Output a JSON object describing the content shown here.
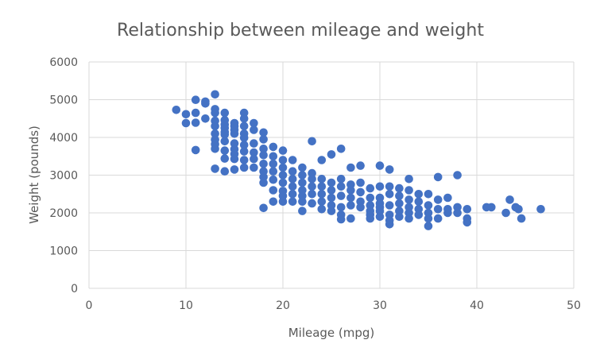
{
  "chart_data": {
    "type": "scatter",
    "title": "Relationship between mileage and weight",
    "xlabel": "Mileage (mpg)",
    "ylabel": "Weight (pounds)",
    "xlim": [
      0,
      50
    ],
    "ylim": [
      0,
      6000
    ],
    "x_ticks": [
      "0",
      "10",
      "20",
      "30",
      "40",
      "50"
    ],
    "y_ticks": [
      "0",
      "1000",
      "2000",
      "3000",
      "4000",
      "5000",
      "6000"
    ],
    "grid": true,
    "marker_color": "#4472c4",
    "legend": "none",
    "series": [
      {
        "points": [
          [
            9,
            4730
          ],
          [
            10,
            4615
          ],
          [
            10,
            4380
          ],
          [
            11,
            4995
          ],
          [
            11,
            4650
          ],
          [
            11,
            4390
          ],
          [
            11,
            3665
          ],
          [
            12,
            4950
          ],
          [
            12,
            4900
          ],
          [
            12,
            4500
          ],
          [
            13,
            5140
          ],
          [
            13,
            4750
          ],
          [
            13,
            4650
          ],
          [
            13,
            4440
          ],
          [
            13,
            4300
          ],
          [
            13,
            4100
          ],
          [
            13,
            3940
          ],
          [
            13,
            3820
          ],
          [
            13,
            3700
          ],
          [
            13,
            3170
          ],
          [
            14,
            4650
          ],
          [
            14,
            4460
          ],
          [
            14,
            4340
          ],
          [
            14,
            4250
          ],
          [
            14,
            4140
          ],
          [
            14,
            4080
          ],
          [
            14,
            3900
          ],
          [
            14,
            3650
          ],
          [
            14,
            3440
          ],
          [
            14,
            3100
          ],
          [
            15,
            4380
          ],
          [
            15,
            4300
          ],
          [
            15,
            4200
          ],
          [
            15,
            4100
          ],
          [
            15,
            3840
          ],
          [
            15,
            3690
          ],
          [
            15,
            3560
          ],
          [
            15,
            3430
          ],
          [
            15,
            3150
          ],
          [
            16,
            4650
          ],
          [
            16,
            4500
          ],
          [
            16,
            4300
          ],
          [
            16,
            4100
          ],
          [
            16,
            3990
          ],
          [
            16,
            3800
          ],
          [
            16,
            3630
          ],
          [
            16,
            3400
          ],
          [
            16,
            3200
          ],
          [
            17,
            4380
          ],
          [
            17,
            4200
          ],
          [
            17,
            3840
          ],
          [
            17,
            3600
          ],
          [
            17,
            3430
          ],
          [
            17,
            3200
          ],
          [
            18,
            4130
          ],
          [
            18,
            3950
          ],
          [
            18,
            3700
          ],
          [
            18,
            3530
          ],
          [
            18,
            3300
          ],
          [
            18,
            3100
          ],
          [
            18,
            2950
          ],
          [
            18,
            2800
          ],
          [
            18,
            2130
          ],
          [
            19,
            3750
          ],
          [
            19,
            3500
          ],
          [
            19,
            3300
          ],
          [
            19,
            3100
          ],
          [
            19,
            2880
          ],
          [
            19,
            2600
          ],
          [
            19,
            2300
          ],
          [
            20,
            3650
          ],
          [
            20,
            3400
          ],
          [
            20,
            3200
          ],
          [
            20,
            3000
          ],
          [
            20,
            2800
          ],
          [
            20,
            2580
          ],
          [
            20,
            2450
          ],
          [
            20,
            2300
          ],
          [
            21,
            3400
          ],
          [
            21,
            3100
          ],
          [
            21,
            2900
          ],
          [
            21,
            2700
          ],
          [
            21,
            2500
          ],
          [
            21,
            2300
          ],
          [
            22,
            3200
          ],
          [
            22,
            3000
          ],
          [
            22,
            2800
          ],
          [
            22,
            2600
          ],
          [
            22,
            2450
          ],
          [
            22,
            2300
          ],
          [
            22,
            2050
          ],
          [
            23,
            3900
          ],
          [
            23,
            3050
          ],
          [
            23,
            2900
          ],
          [
            23,
            2700
          ],
          [
            23,
            2500
          ],
          [
            23,
            2250
          ],
          [
            24,
            3400
          ],
          [
            24,
            2900
          ],
          [
            24,
            2700
          ],
          [
            24,
            2500
          ],
          [
            24,
            2300
          ],
          [
            24,
            2100
          ],
          [
            25,
            3550
          ],
          [
            25,
            2800
          ],
          [
            25,
            2600
          ],
          [
            25,
            2400
          ],
          [
            25,
            2200
          ],
          [
            25,
            2050
          ],
          [
            26,
            3700
          ],
          [
            26,
            2900
          ],
          [
            26,
            2700
          ],
          [
            26,
            2450
          ],
          [
            26,
            2150
          ],
          [
            26,
            1950
          ],
          [
            26,
            1830
          ],
          [
            27,
            3200
          ],
          [
            27,
            2750
          ],
          [
            27,
            2600
          ],
          [
            27,
            2400
          ],
          [
            27,
            2200
          ],
          [
            27,
            1850
          ],
          [
            28,
            3250
          ],
          [
            28,
            2800
          ],
          [
            28,
            2550
          ],
          [
            28,
            2300
          ],
          [
            28,
            2150
          ],
          [
            29,
            2650
          ],
          [
            29,
            2400
          ],
          [
            29,
            2200
          ],
          [
            29,
            2050
          ],
          [
            29,
            1950
          ],
          [
            29,
            1850
          ],
          [
            30,
            3250
          ],
          [
            30,
            2700
          ],
          [
            30,
            2400
          ],
          [
            30,
            2250
          ],
          [
            30,
            2150
          ],
          [
            30,
            2050
          ],
          [
            30,
            1900
          ],
          [
            31,
            3150
          ],
          [
            31,
            2700
          ],
          [
            31,
            2500
          ],
          [
            31,
            2200
          ],
          [
            31,
            1950
          ],
          [
            31,
            1800
          ],
          [
            31,
            1700
          ],
          [
            32,
            2650
          ],
          [
            32,
            2450
          ],
          [
            32,
            2250
          ],
          [
            32,
            2050
          ],
          [
            32,
            1900
          ],
          [
            33,
            2900
          ],
          [
            33,
            2600
          ],
          [
            33,
            2350
          ],
          [
            33,
            2150
          ],
          [
            33,
            2000
          ],
          [
            33,
            1850
          ],
          [
            34,
            2500
          ],
          [
            34,
            2300
          ],
          [
            34,
            2100
          ],
          [
            34,
            1950
          ],
          [
            35,
            2500
          ],
          [
            35,
            2200
          ],
          [
            35,
            2000
          ],
          [
            35,
            1850
          ],
          [
            35,
            1650
          ],
          [
            36,
            2950
          ],
          [
            36,
            2350
          ],
          [
            36,
            2100
          ],
          [
            36,
            1850
          ],
          [
            37,
            2400
          ],
          [
            37,
            2100
          ],
          [
            37,
            2000
          ],
          [
            38,
            3000
          ],
          [
            38,
            2150
          ],
          [
            38,
            2000
          ],
          [
            39,
            2100
          ],
          [
            39,
            1850
          ],
          [
            39,
            1750
          ],
          [
            41,
            2150
          ],
          [
            41.5,
            2150
          ],
          [
            43,
            2000
          ],
          [
            43.4,
            2350
          ],
          [
            44,
            2150
          ],
          [
            44.3,
            2100
          ],
          [
            44.6,
            1850
          ],
          [
            46.6,
            2100
          ]
        ]
      }
    ]
  }
}
